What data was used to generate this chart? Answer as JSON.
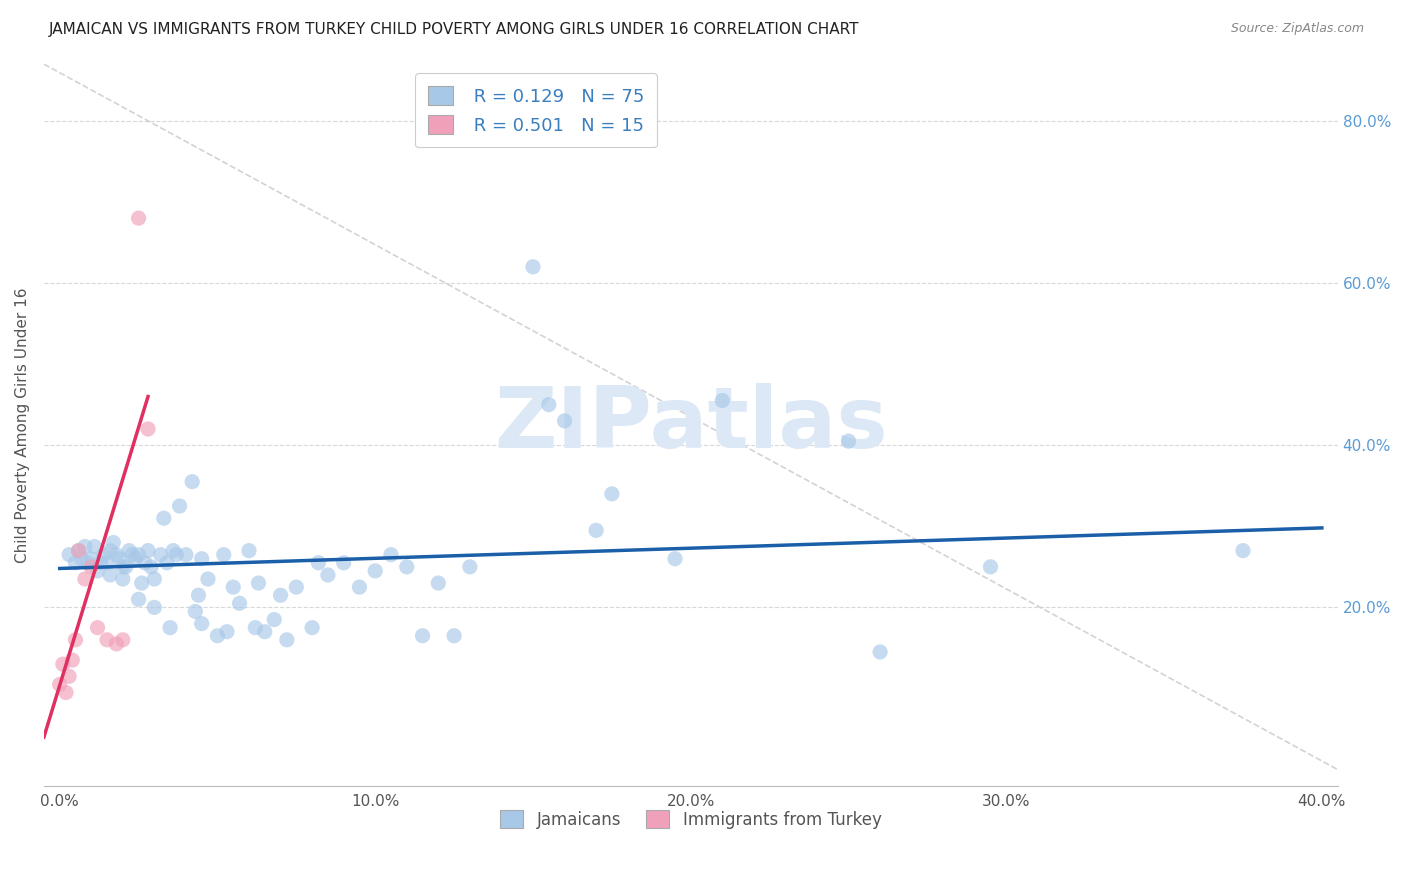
{
  "title": "JAMAICAN VS IMMIGRANTS FROM TURKEY CHILD POVERTY AMONG GIRLS UNDER 16 CORRELATION CHART",
  "source": "Source: ZipAtlas.com",
  "xlabel_ticks": [
    "0.0%",
    "",
    "10.0%",
    "",
    "20.0%",
    "",
    "30.0%",
    "",
    "40.0%"
  ],
  "xlabel_tick_vals": [
    0.0,
    0.05,
    0.1,
    0.15,
    0.2,
    0.25,
    0.3,
    0.35,
    0.4
  ],
  "ylabel": "Child Poverty Among Girls Under 16",
  "ylabel_right_ticks": [
    "20.0%",
    "40.0%",
    "60.0%",
    "80.0%"
  ],
  "ylabel_right_tick_vals": [
    0.2,
    0.4,
    0.6,
    0.8
  ],
  "xlim": [
    -0.005,
    0.405
  ],
  "ylim": [
    -0.02,
    0.87
  ],
  "legend_label1": "Jamaicans",
  "legend_label2": "Immigrants from Turkey",
  "blue_color": "#a8c8e8",
  "pink_color": "#f0a0b8",
  "blue_line_color": "#1a5fa8",
  "pink_line_color": "#e03060",
  "dashed_color": "#c8c8c8",
  "scatter_blue": [
    [
      0.003,
      0.265
    ],
    [
      0.005,
      0.255
    ],
    [
      0.006,
      0.27
    ],
    [
      0.007,
      0.26
    ],
    [
      0.008,
      0.275
    ],
    [
      0.009,
      0.255
    ],
    [
      0.01,
      0.26
    ],
    [
      0.011,
      0.275
    ],
    [
      0.012,
      0.245
    ],
    [
      0.013,
      0.255
    ],
    [
      0.014,
      0.265
    ],
    [
      0.015,
      0.255
    ],
    [
      0.016,
      0.27
    ],
    [
      0.016,
      0.24
    ],
    [
      0.017,
      0.28
    ],
    [
      0.018,
      0.265
    ],
    [
      0.019,
      0.26
    ],
    [
      0.02,
      0.25
    ],
    [
      0.02,
      0.235
    ],
    [
      0.021,
      0.25
    ],
    [
      0.022,
      0.27
    ],
    [
      0.023,
      0.265
    ],
    [
      0.024,
      0.26
    ],
    [
      0.025,
      0.265
    ],
    [
      0.025,
      0.21
    ],
    [
      0.026,
      0.23
    ],
    [
      0.027,
      0.255
    ],
    [
      0.028,
      0.27
    ],
    [
      0.029,
      0.25
    ],
    [
      0.03,
      0.235
    ],
    [
      0.03,
      0.2
    ],
    [
      0.032,
      0.265
    ],
    [
      0.033,
      0.31
    ],
    [
      0.034,
      0.255
    ],
    [
      0.035,
      0.175
    ],
    [
      0.036,
      0.27
    ],
    [
      0.037,
      0.265
    ],
    [
      0.038,
      0.325
    ],
    [
      0.04,
      0.265
    ],
    [
      0.042,
      0.355
    ],
    [
      0.043,
      0.195
    ],
    [
      0.044,
      0.215
    ],
    [
      0.045,
      0.26
    ],
    [
      0.045,
      0.18
    ],
    [
      0.047,
      0.235
    ],
    [
      0.05,
      0.165
    ],
    [
      0.052,
      0.265
    ],
    [
      0.053,
      0.17
    ],
    [
      0.055,
      0.225
    ],
    [
      0.057,
      0.205
    ],
    [
      0.06,
      0.27
    ],
    [
      0.062,
      0.175
    ],
    [
      0.063,
      0.23
    ],
    [
      0.065,
      0.17
    ],
    [
      0.068,
      0.185
    ],
    [
      0.07,
      0.215
    ],
    [
      0.072,
      0.16
    ],
    [
      0.075,
      0.225
    ],
    [
      0.08,
      0.175
    ],
    [
      0.082,
      0.255
    ],
    [
      0.085,
      0.24
    ],
    [
      0.09,
      0.255
    ],
    [
      0.095,
      0.225
    ],
    [
      0.1,
      0.245
    ],
    [
      0.105,
      0.265
    ],
    [
      0.11,
      0.25
    ],
    [
      0.115,
      0.165
    ],
    [
      0.12,
      0.23
    ],
    [
      0.125,
      0.165
    ],
    [
      0.13,
      0.25
    ],
    [
      0.15,
      0.62
    ],
    [
      0.155,
      0.45
    ],
    [
      0.16,
      0.43
    ],
    [
      0.17,
      0.295
    ],
    [
      0.175,
      0.34
    ],
    [
      0.195,
      0.26
    ],
    [
      0.21,
      0.455
    ],
    [
      0.25,
      0.405
    ],
    [
      0.26,
      0.145
    ],
    [
      0.295,
      0.25
    ],
    [
      0.375,
      0.27
    ]
  ],
  "scatter_pink": [
    [
      0.0,
      0.105
    ],
    [
      0.001,
      0.13
    ],
    [
      0.002,
      0.095
    ],
    [
      0.003,
      0.115
    ],
    [
      0.004,
      0.135
    ],
    [
      0.005,
      0.16
    ],
    [
      0.006,
      0.27
    ],
    [
      0.008,
      0.235
    ],
    [
      0.01,
      0.25
    ],
    [
      0.012,
      0.175
    ],
    [
      0.015,
      0.16
    ],
    [
      0.018,
      0.155
    ],
    [
      0.02,
      0.16
    ],
    [
      0.025,
      0.68
    ],
    [
      0.028,
      0.42
    ]
  ],
  "blue_trendline": [
    [
      0.0,
      0.248
    ],
    [
      0.4,
      0.298
    ]
  ],
  "pink_trendline": [
    [
      -0.005,
      0.04
    ],
    [
      0.028,
      0.46
    ]
  ],
  "dashed_line": [
    [
      -0.005,
      0.87
    ],
    [
      0.405,
      0.0
    ]
  ],
  "watermark_text": "ZIPatlas",
  "watermark_color": "#dce8f5",
  "bg_color": "#ffffff",
  "title_fontsize": 11,
  "source_fontsize": 9,
  "axis_tick_fontsize": 11,
  "ylabel_fontsize": 11
}
